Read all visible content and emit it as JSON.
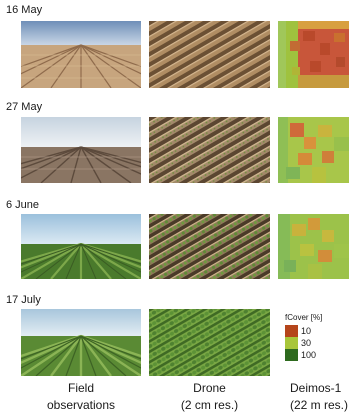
{
  "rows": [
    {
      "date": "16 May"
    },
    {
      "date": "27 May"
    },
    {
      "date": "6 June"
    },
    {
      "date": "17 July"
    }
  ],
  "columns": [
    {
      "line1": "Field",
      "line2": "observations"
    },
    {
      "line1": "Drone",
      "line2": "(2 cm res.)"
    },
    {
      "line1": "Deimos-1",
      "line2": "(22 m res.)"
    }
  ],
  "legend": {
    "title": "fCover [%]",
    "items": [
      {
        "label": "10",
        "color": "#b5451b"
      },
      {
        "label": "30",
        "color": "#a8c63a"
      },
      {
        "label": "100",
        "color": "#2e6a1e"
      }
    ]
  }
}
